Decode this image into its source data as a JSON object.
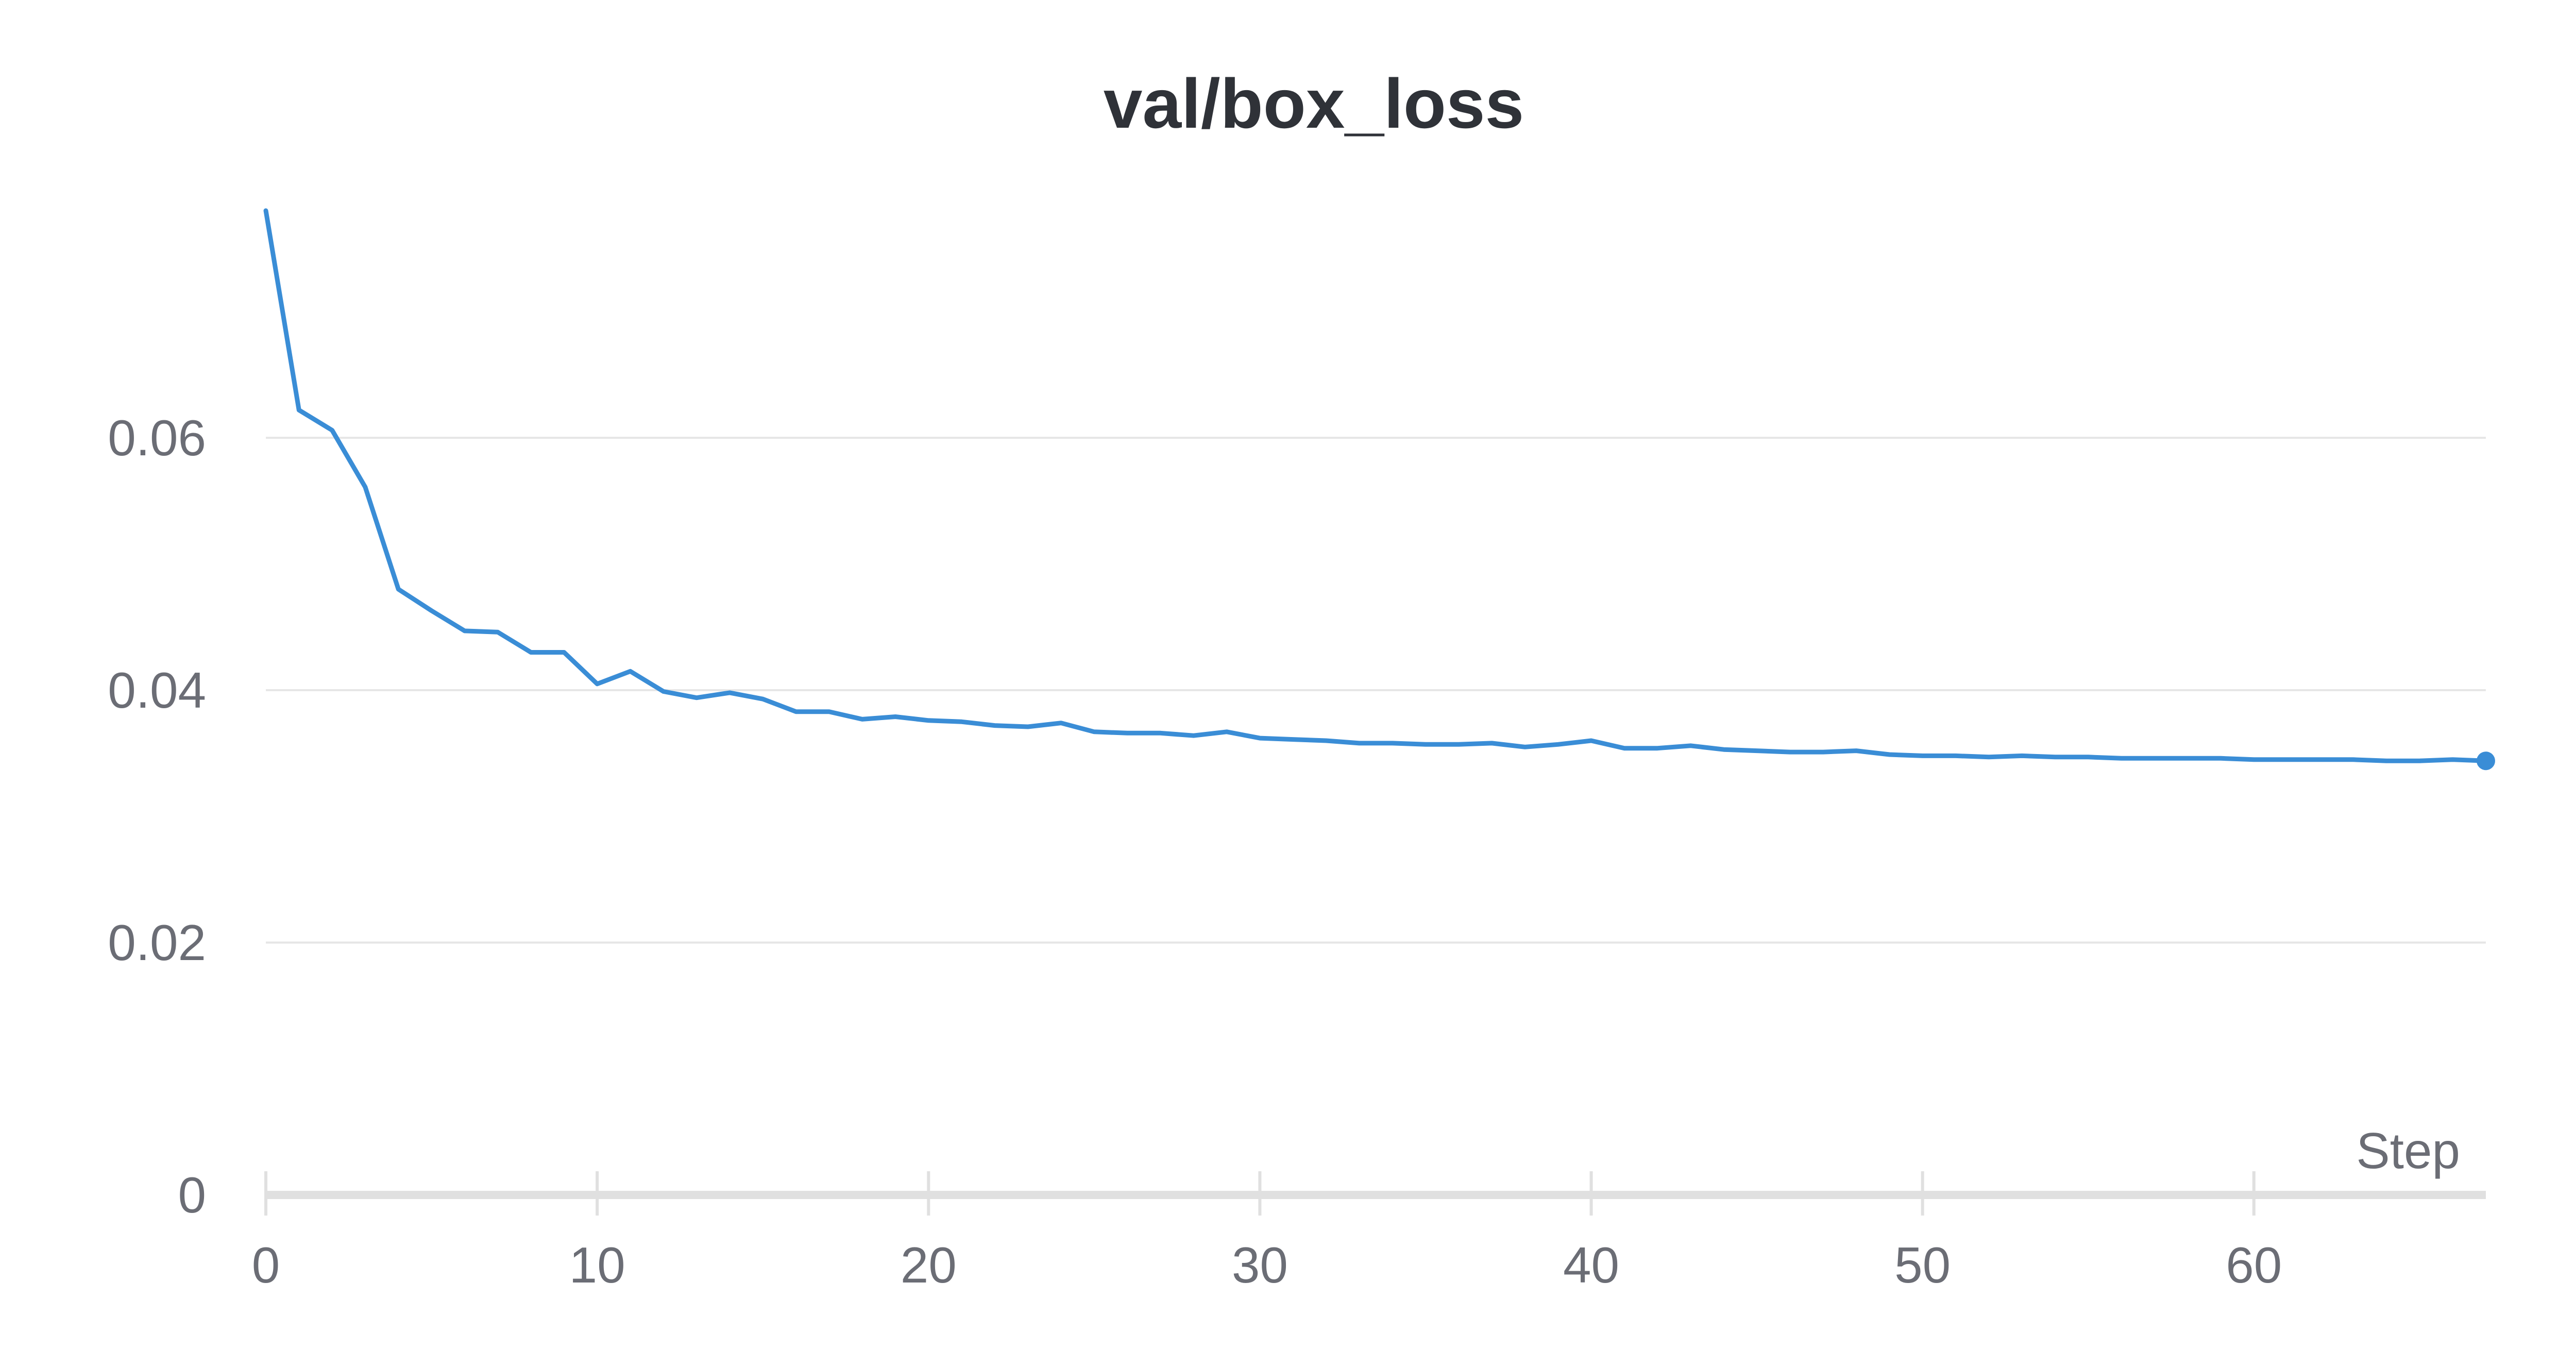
{
  "chart_data": {
    "type": "line",
    "title": "val/box_loss",
    "xlabel": "Step",
    "ylabel": "",
    "xlim": [
      0,
      67
    ],
    "ylim": [
      0,
      0.08
    ],
    "x_ticks": [
      {
        "value": 0,
        "label": "0"
      },
      {
        "value": 10,
        "label": "10"
      },
      {
        "value": 20,
        "label": "20"
      },
      {
        "value": 30,
        "label": "30"
      },
      {
        "value": 40,
        "label": "40"
      },
      {
        "value": 50,
        "label": "50"
      },
      {
        "value": 60,
        "label": "60"
      }
    ],
    "y_ticks": [
      {
        "value": 0,
        "label": "0"
      },
      {
        "value": 0.02,
        "label": "0.02"
      },
      {
        "value": 0.04,
        "label": "0.04"
      },
      {
        "value": 0.06,
        "label": "0.06"
      }
    ],
    "grid": true,
    "legend": "none",
    "series": [
      {
        "color": "#3a8dd6",
        "end_marker": true,
        "x": [
          0,
          1,
          2,
          3,
          4,
          5,
          6,
          7,
          8,
          9,
          10,
          11,
          12,
          13,
          14,
          15,
          16,
          17,
          18,
          19,
          20,
          21,
          22,
          23,
          24,
          25,
          26,
          27,
          28,
          29,
          30,
          31,
          32,
          33,
          34,
          35,
          36,
          37,
          38,
          39,
          40,
          41,
          42,
          43,
          44,
          45,
          46,
          47,
          48,
          49,
          50,
          51,
          52,
          53,
          54,
          55,
          56,
          57,
          58,
          59,
          60,
          61,
          62,
          63,
          64,
          65,
          66,
          67
        ],
        "values": [
          0.078,
          0.0622,
          0.0606,
          0.0561,
          0.048,
          0.0463,
          0.0447,
          0.0446,
          0.043,
          0.043,
          0.0405,
          0.0415,
          0.0399,
          0.0394,
          0.0398,
          0.0393,
          0.0383,
          0.0383,
          0.0377,
          0.0379,
          0.0376,
          0.0375,
          0.0372,
          0.0371,
          0.0374,
          0.0367,
          0.0366,
          0.0366,
          0.0364,
          0.0367,
          0.0362,
          0.0361,
          0.036,
          0.0358,
          0.0358,
          0.0357,
          0.0357,
          0.0358,
          0.0355,
          0.0357,
          0.036,
          0.0354,
          0.0354,
          0.0356,
          0.0353,
          0.0352,
          0.0351,
          0.0351,
          0.0352,
          0.0349,
          0.0348,
          0.0348,
          0.0347,
          0.0348,
          0.0347,
          0.0347,
          0.0346,
          0.0346,
          0.0346,
          0.0346,
          0.0345,
          0.0345,
          0.0345,
          0.0345,
          0.0344,
          0.0344,
          0.0345,
          0.0344
        ]
      }
    ]
  }
}
